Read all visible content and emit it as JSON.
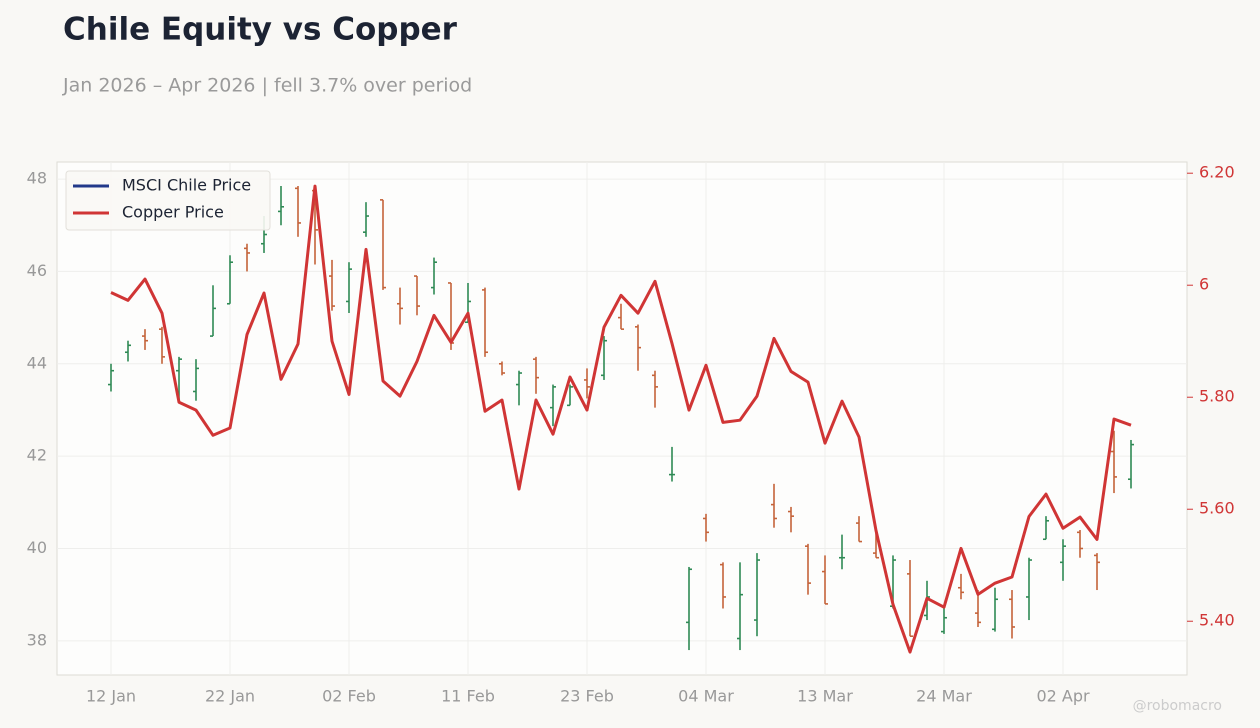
{
  "chart_data": {
    "type": "ohlc",
    "title": "Chile Equity vs Copper",
    "subtitle": "Jan 2026 – Apr 2026 | fell 3.7% over period",
    "watermark": "@robomacro",
    "categories": [
      "12 Jan",
      null,
      null,
      null,
      null,
      null,
      null,
      "22 Jan",
      null,
      null,
      null,
      null,
      null,
      null,
      "02 Feb",
      null,
      null,
      null,
      null,
      null,
      null,
      "11 Feb",
      null,
      null,
      null,
      null,
      null,
      null,
      "23 Feb",
      null,
      null,
      null,
      null,
      null,
      null,
      "04 Mar",
      null,
      null,
      null,
      null,
      null,
      null,
      "13 Mar",
      null,
      null,
      null,
      null,
      null,
      null,
      "24 Mar",
      null,
      null,
      null,
      null,
      null,
      null,
      "02 Apr",
      null,
      null,
      null,
      null
    ],
    "series": [
      {
        "name": "MSCI Chile Price",
        "color": "#22398a",
        "up_color": "#2f8a55",
        "down_color": "#c4633a",
        "open": [
          43.55,
          44.25,
          44.6,
          44.75,
          43.85,
          43.4,
          44.6,
          45.3,
          46.5,
          46.6,
          47.3,
          47.8,
          47.75,
          45.9,
          45.35,
          46.85,
          47.55,
          45.3,
          45.9,
          45.65,
          45.75,
          44.9,
          45.6,
          44.0,
          43.55,
          44.1,
          43.05,
          43.1,
          43.65,
          43.75,
          45.0,
          44.8,
          43.75,
          41.6,
          38.4,
          40.65,
          39.65,
          38.05,
          38.45,
          40.95,
          40.8,
          40.05,
          39.5,
          39.8,
          40.55,
          39.9,
          38.75,
          39.45,
          38.55,
          38.2,
          39.15,
          38.6,
          38.25,
          38.9,
          38.95,
          40.2,
          39.7,
          40.35,
          39.85,
          42.1,
          41.5
        ],
        "high": [
          44.0,
          44.5,
          44.75,
          44.8,
          44.15,
          44.1,
          45.7,
          46.35,
          46.6,
          47.2,
          47.85,
          47.85,
          47.85,
          46.25,
          46.2,
          47.5,
          47.55,
          45.65,
          45.9,
          46.3,
          45.75,
          45.75,
          45.65,
          44.05,
          43.85,
          44.15,
          43.55,
          43.55,
          43.9,
          44.6,
          45.3,
          44.85,
          43.85,
          42.2,
          39.6,
          40.75,
          39.7,
          39.7,
          39.9,
          41.4,
          40.9,
          40.1,
          39.85,
          40.3,
          40.7,
          40.4,
          39.85,
          39.75,
          39.3,
          38.75,
          39.45,
          39.1,
          39.15,
          39.1,
          39.8,
          40.7,
          40.2,
          40.4,
          39.9,
          42.55,
          42.35
        ],
        "low": [
          43.4,
          44.05,
          44.3,
          44.0,
          43.2,
          43.2,
          44.6,
          45.3,
          46.0,
          46.4,
          47.0,
          46.75,
          46.15,
          45.15,
          45.1,
          46.75,
          45.6,
          44.85,
          45.05,
          45.5,
          44.3,
          44.9,
          44.15,
          43.75,
          43.1,
          43.35,
          42.65,
          43.1,
          43.25,
          43.65,
          44.75,
          43.85,
          43.05,
          41.45,
          37.8,
          40.15,
          38.7,
          37.8,
          38.1,
          40.45,
          40.35,
          39.0,
          38.8,
          39.55,
          40.15,
          39.8,
          38.7,
          38.1,
          38.45,
          38.15,
          38.9,
          38.3,
          38.2,
          38.05,
          38.45,
          40.2,
          39.3,
          39.8,
          39.1,
          41.2,
          41.3
        ],
        "close": [
          43.85,
          44.4,
          44.5,
          44.15,
          44.1,
          43.9,
          45.2,
          46.2,
          46.4,
          46.8,
          47.4,
          47.05,
          46.9,
          45.25,
          46.05,
          47.2,
          45.65,
          45.2,
          45.25,
          46.2,
          44.45,
          45.35,
          44.25,
          43.8,
          43.8,
          43.7,
          43.5,
          43.5,
          43.5,
          44.5,
          44.75,
          44.35,
          43.5,
          41.6,
          39.55,
          40.35,
          38.95,
          39.0,
          39.75,
          40.65,
          40.7,
          39.25,
          38.8,
          39.8,
          40.15,
          39.8,
          39.75,
          38.1,
          38.95,
          38.5,
          39.05,
          38.4,
          38.9,
          38.3,
          39.75,
          40.6,
          40.05,
          40.0,
          39.7,
          41.55,
          42.25
        ]
      },
      {
        "name": "Copper Price",
        "color": "#d03535",
        "axis": "y2",
        "values": [
          5.987,
          5.973,
          6.011,
          5.95,
          5.791,
          5.777,
          5.732,
          5.745,
          5.912,
          5.986,
          5.832,
          5.895,
          6.177,
          5.9,
          5.805,
          6.064,
          5.829,
          5.802,
          5.864,
          5.946,
          5.898,
          5.95,
          5.775,
          5.795,
          5.636,
          5.795,
          5.734,
          5.836,
          5.777,
          5.925,
          5.982,
          5.95,
          6.007,
          5.896,
          5.777,
          5.857,
          5.755,
          5.759,
          5.802,
          5.905,
          5.846,
          5.827,
          5.718,
          5.793,
          5.729,
          5.562,
          5.43,
          5.345,
          5.441,
          5.425,
          5.53,
          5.448,
          5.468,
          5.479,
          5.587,
          5.627,
          5.566,
          5.586,
          5.546,
          5.761,
          5.75
        ]
      }
    ],
    "ylim": [
      37.26,
      48.37
    ],
    "yticks": [
      38,
      40,
      42,
      44,
      46,
      48
    ],
    "y2lim": [
      5.304,
      6.22
    ],
    "y2ticks": [
      {
        "value": 5.4,
        "label": "5.40"
      },
      {
        "value": 5.6,
        "label": "5.60"
      },
      {
        "value": 5.8,
        "label": "5.80"
      },
      6,
      {
        "value": 6.2,
        "label": "6.20"
      }
    ],
    "grid": true,
    "legend": "upper left"
  }
}
